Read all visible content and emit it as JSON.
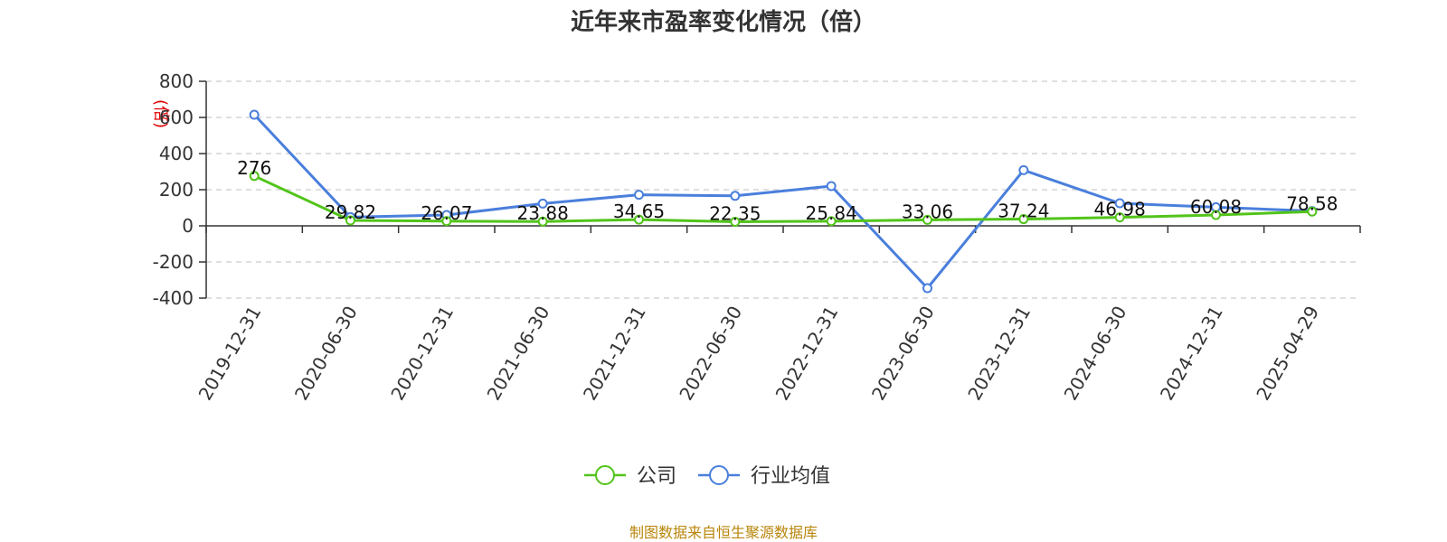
{
  "chart_data": {
    "type": "line",
    "title": "近年来市盈率变化情况（倍）",
    "ylabel": "(倍)",
    "xlabel": "",
    "categories": [
      "2019-12-31",
      "2020-06-30",
      "2020-12-31",
      "2021-06-30",
      "2021-12-31",
      "2022-06-30",
      "2022-12-31",
      "2023-06-30",
      "2023-12-31",
      "2024-06-30",
      "2024-12-31",
      "2025-04-29"
    ],
    "series": [
      {
        "name": "公司",
        "color": "#52c41a",
        "values": [
          276,
          29.82,
          26.07,
          23.88,
          34.65,
          22.35,
          25.84,
          33.06,
          37.24,
          46.98,
          60.08,
          78.58
        ],
        "labels": [
          "276",
          "29.82",
          "26.07",
          "23.88",
          "34.65",
          "22.35",
          "25.84",
          "33.06",
          "37.24",
          "46.98",
          "60.08",
          "78.58"
        ]
      },
      {
        "name": "行业均值",
        "color": "#4a7fdc",
        "values": [
          615,
          48,
          60,
          123,
          172,
          166,
          220,
          -345,
          308,
          125,
          103,
          82
        ]
      }
    ],
    "ylim": [
      -400,
      800
    ],
    "yticks": [
      "800",
      "600",
      "400",
      "200",
      "0",
      "-200",
      "-400"
    ],
    "ytick_values": [
      800,
      600,
      400,
      200,
      0,
      -200,
      -400
    ],
    "grid": true,
    "legend": "bottom-center"
  },
  "source_note": "制图数据来自恒生聚源数据库"
}
